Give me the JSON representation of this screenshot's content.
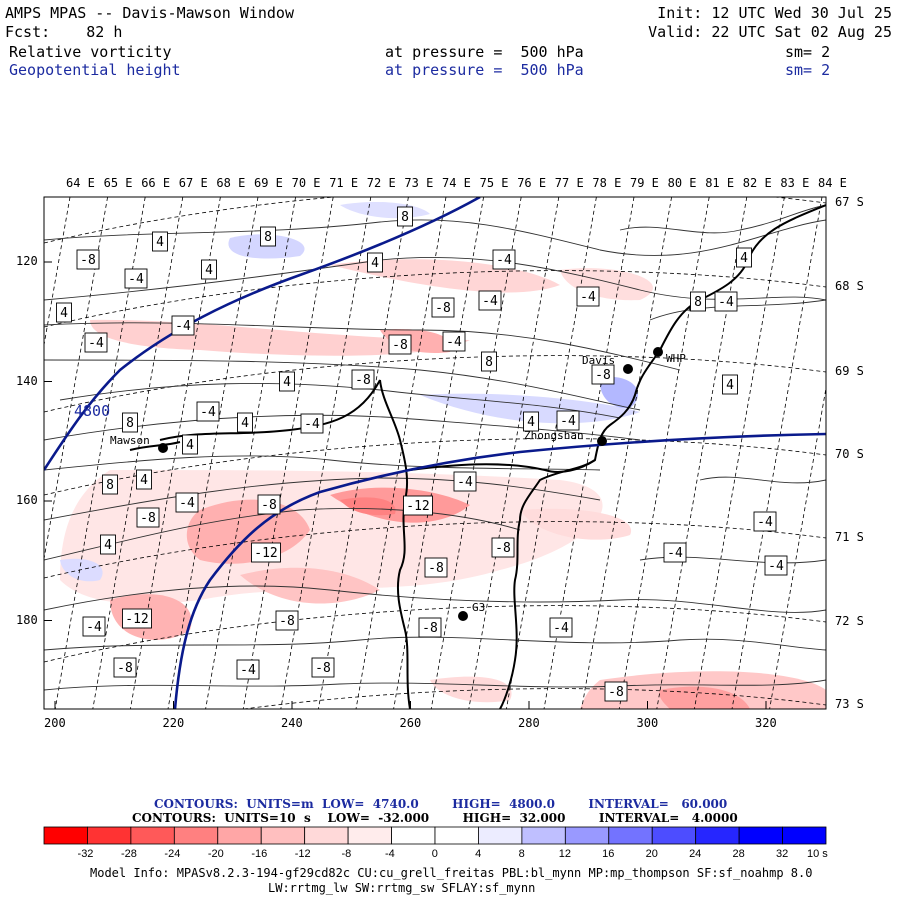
{
  "header": {
    "model": "AMPS MPAS -- Davis-Mawson Window",
    "forecast": "Fcst:    82 h",
    "init": "Init: 12 UTC Wed 30 Jul 25",
    "valid": "Valid: 22 UTC Sat 02 Aug 25",
    "field1": "Relative vorticity",
    "field1_level": "at pressure =  500 hPa",
    "field1_sm": "sm= 2",
    "field2": "Geopotential height",
    "field2_level": "at pressure =  500 hPa",
    "field2_sm": "sm= 2"
  },
  "map": {
    "lon_labels": [
      "64 E",
      "65 E",
      "66 E",
      "67 E",
      "68 E",
      "69 E",
      "70 E",
      "71 E",
      "72 E",
      "73 E",
      "74 E",
      "75 E",
      "76 E",
      "77 E",
      "78 E",
      "79 E",
      "80 E",
      "81 E",
      "82 E",
      "83 E",
      "84 E"
    ],
    "lat_labels": [
      "67 S",
      "68 S",
      "69 S",
      "70 S",
      "71 S",
      "72 S",
      "73 S"
    ],
    "x_ticks": [
      "200",
      "220",
      "240",
      "260",
      "280",
      "300",
      "320"
    ],
    "y_ticks": [
      "120",
      "140",
      "160",
      "180"
    ],
    "height_contour_labels": [
      "4800"
    ],
    "stations": [
      {
        "name": "Mawson"
      },
      {
        "name": "Davis"
      },
      {
        "name": "WHP"
      },
      {
        "name": "Zhongshan"
      },
      {
        "name": "G3"
      }
    ],
    "contour_labels": [
      {
        "t": "8"
      },
      {
        "t": "4"
      },
      {
        "t": "8"
      },
      {
        "t": "-8"
      },
      {
        "t": "4"
      },
      {
        "t": "-4"
      },
      {
        "t": "4"
      },
      {
        "t": "-4"
      },
      {
        "t": "4"
      },
      {
        "t": "-4"
      },
      {
        "t": "-4"
      },
      {
        "t": "-4"
      },
      {
        "t": "4"
      },
      {
        "t": "8"
      },
      {
        "t": "-4"
      },
      {
        "t": "-8"
      },
      {
        "t": "-4"
      },
      {
        "t": "-8"
      },
      {
        "t": "-4"
      },
      {
        "t": "8"
      },
      {
        "t": "4"
      },
      {
        "t": "-8"
      },
      {
        "t": "-8"
      },
      {
        "t": "4"
      },
      {
        "t": "-4"
      },
      {
        "t": "8"
      },
      {
        "t": "4"
      },
      {
        "t": "-4"
      },
      {
        "t": "4"
      },
      {
        "t": "-4"
      },
      {
        "t": "4"
      },
      {
        "t": "8"
      },
      {
        "t": "4"
      },
      {
        "t": "-4"
      },
      {
        "t": "-8"
      },
      {
        "t": "-12"
      },
      {
        "t": "-4"
      },
      {
        "t": "-8"
      },
      {
        "t": "4"
      },
      {
        "t": "-12"
      },
      {
        "t": "-8"
      },
      {
        "t": "-8"
      },
      {
        "t": "-4"
      },
      {
        "t": "-4"
      },
      {
        "t": "-4"
      },
      {
        "t": "-12"
      },
      {
        "t": "-4"
      },
      {
        "t": "-8"
      },
      {
        "t": "-4"
      },
      {
        "t": "-8"
      },
      {
        "t": "-8"
      },
      {
        "t": "-4"
      },
      {
        "t": "-8"
      },
      {
        "t": "-8"
      }
    ]
  },
  "footer": {
    "height_line": "CONTOURS:  UNITS=m  LOW=  4740.0        HIGH=  4800.0        INTERVAL=   60.000",
    "vort_line": "CONTOURS:  UNITS=10  s    LOW=  -32.000        HIGH=  32.000        INTERVAL=   4.0000",
    "model_info": "Model Info: MPASv8.2.3-194-gf29cd82c CU:cu_grell_freitas PBL:bl_mynn MP:mp_thompson SF:sf_noahmp 8.0",
    "model_info2": "LW:rrtmg_lw SW:rrtmg_sw SFLAY:sf_mynn"
  },
  "colorbar": {
    "labels": [
      "-32",
      "-28",
      "-24",
      "-20",
      "-16",
      "-12",
      "-8",
      "-4",
      "0",
      "4",
      "8",
      "12",
      "16",
      "20",
      "24",
      "28",
      "32"
    ],
    "unit": "10   s",
    "colors": [
      "#ff0000",
      "#ff3333",
      "#ff5959",
      "#ff8080",
      "#ffa6a6",
      "#ffbfbf",
      "#ffd9d9",
      "#ffecec",
      "#ffffff",
      "#ffffff",
      "#ececff",
      "#bfbfff",
      "#9999ff",
      "#7373ff",
      "#4d4dff",
      "#2626ff",
      "#0000ff",
      "#0000ff"
    ]
  }
}
